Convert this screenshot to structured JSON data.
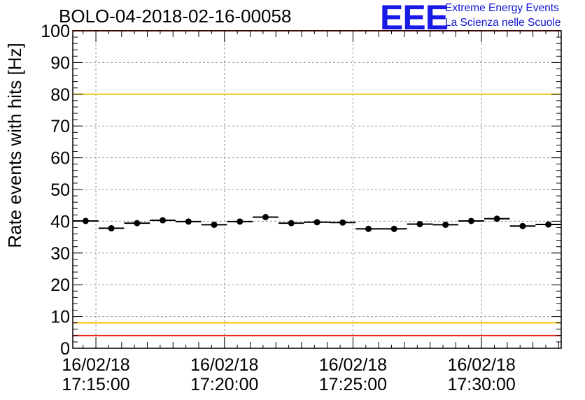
{
  "header": {
    "title": "BOLO-04-2018-02-16-00058",
    "logo_mark": "EEE",
    "logo_line1": "Extreme Energy Events",
    "logo_line2": "La Scienza nelle Scuole"
  },
  "colors": {
    "marker": "#000000",
    "grid": "#9a9a9a",
    "upper_limit": "#e8241c",
    "lower_limit": "#e8241c",
    "warning_high": "#f2c417",
    "warning_low": "#f2c417",
    "logo": "#1a1ae8"
  },
  "chart_data": {
    "type": "scatter",
    "title": "BOLO-04-2018-02-16-00058",
    "ylabel": "Rate events with hits [Hz]",
    "xlabel": "",
    "ylim": [
      0,
      100
    ],
    "xlim_minutes": [
      14.1,
      33.1
    ],
    "y_ticks": [
      "0",
      "10",
      "20",
      "30",
      "40",
      "50",
      "60",
      "70",
      "80",
      "90",
      "100"
    ],
    "x_ticks": [
      {
        "minute": 15,
        "date": "16/02/18",
        "time": "17:15:00"
      },
      {
        "minute": 20,
        "date": "16/02/18",
        "time": "17:20:00"
      },
      {
        "minute": 25,
        "date": "16/02/18",
        "time": "17:25:00"
      },
      {
        "minute": 30,
        "date": "16/02/18",
        "time": "17:30:00"
      }
    ],
    "grid": true,
    "bin_width_minutes": 1,
    "series": [
      {
        "x_minutes": [
          14.6,
          15.6,
          16.6,
          17.6,
          18.6,
          19.6,
          20.6,
          21.6,
          22.6,
          23.6,
          24.6,
          25.6,
          26.6,
          27.6,
          28.6,
          29.6,
          30.6,
          31.6,
          32.6
        ],
        "values": [
          40.1,
          37.8,
          39.4,
          40.3,
          39.9,
          38.9,
          39.9,
          41.3,
          39.4,
          39.7,
          39.6,
          37.6,
          37.6,
          39.1,
          38.9,
          40.1,
          40.8,
          38.5,
          39.0
        ]
      }
    ],
    "reference_lines": [
      {
        "y": 100,
        "color": "red"
      },
      {
        "y": 80,
        "color": "yellow"
      },
      {
        "y": 8,
        "color": "yellow"
      },
      {
        "y": 4,
        "color": "red"
      }
    ]
  }
}
